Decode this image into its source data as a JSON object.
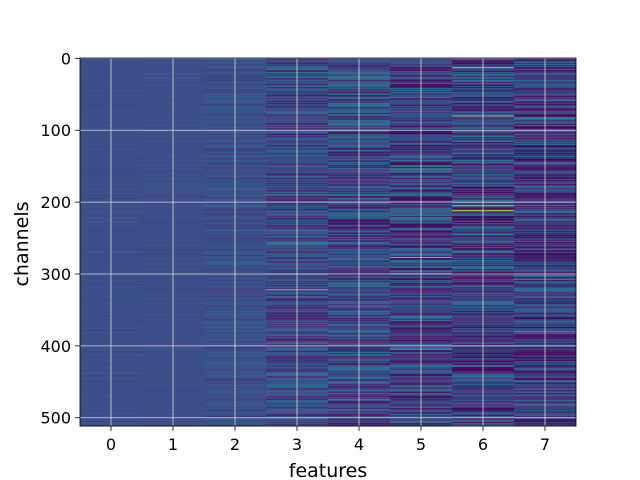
{
  "chart_data": {
    "type": "heatmap",
    "title": "",
    "xlabel": "features",
    "ylabel": "channels",
    "x_ticks": [
      "0",
      "1",
      "2",
      "3",
      "4",
      "5",
      "6",
      "7"
    ],
    "y_ticks": [
      "0",
      "100",
      "200",
      "300",
      "400",
      "500"
    ],
    "xlim": [
      -0.5,
      7.5
    ],
    "ylim": [
      511.5,
      -0.5
    ],
    "n_rows": 512,
    "n_cols": 8,
    "grid": true,
    "colormap": "viridis",
    "colors": {
      "background": "#3b528b",
      "low": "#440154",
      "mid": "#21918c",
      "high": "#fde725",
      "grid": "#d9d9d9"
    },
    "column_profiles": [
      {
        "feature": 0,
        "variation": "very low",
        "base": 0.24
      },
      {
        "feature": 1,
        "variation": "very low",
        "base": 0.24
      },
      {
        "feature": 2,
        "variation": "low",
        "base": 0.25
      },
      {
        "feature": 3,
        "variation": "medium",
        "base": 0.23
      },
      {
        "feature": 4,
        "variation": "medium-high",
        "base": 0.22
      },
      {
        "feature": 5,
        "variation": "high",
        "base": 0.2
      },
      {
        "feature": 6,
        "variation": "high",
        "base": 0.2
      },
      {
        "feature": 7,
        "variation": "high",
        "base": 0.19
      }
    ],
    "highlights": [
      {
        "feature": 3,
        "channel": 322,
        "level": "high"
      },
      {
        "feature": 3,
        "channel": 20,
        "level": "medium"
      },
      {
        "feature": 3,
        "channel": 258,
        "level": "medium"
      },
      {
        "feature": 4,
        "channel": 50,
        "level": "medium"
      },
      {
        "feature": 4,
        "channel": 218,
        "level": "medium"
      },
      {
        "feature": 4,
        "channel": 475,
        "level": "medium"
      },
      {
        "feature": 5,
        "channel": 277,
        "level": "high"
      },
      {
        "feature": 5,
        "channel": 155,
        "level": "medium"
      },
      {
        "feature": 5,
        "channel": 405,
        "level": "medium"
      },
      {
        "feature": 6,
        "channel": 13,
        "level": "high"
      },
      {
        "feature": 6,
        "channel": 80,
        "level": "high"
      },
      {
        "feature": 6,
        "channel": 205,
        "level": "high"
      },
      {
        "feature": 6,
        "channel": 212,
        "level": "high"
      },
      {
        "feature": 6,
        "channel": 268,
        "level": "medium"
      },
      {
        "feature": 7,
        "channel": 83,
        "level": "medium"
      },
      {
        "feature": 7,
        "channel": 380,
        "level": "medium"
      }
    ]
  }
}
